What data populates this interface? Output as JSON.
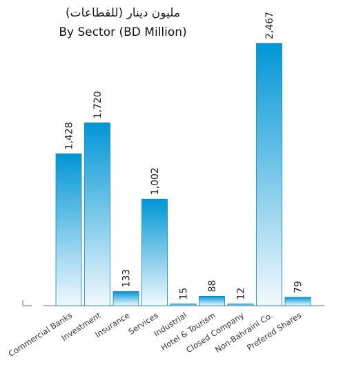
{
  "chart_data": {
    "type": "bar",
    "title_ar": "مليون دينار (للقطاعات)",
    "title": "By Sector (BD Million)",
    "categories": [
      "Commercial Banks",
      "Investment",
      "Insurance",
      "Services",
      "Industrial",
      "Hotel & Tourism",
      "Closed Company",
      "Non-Bahraini Co.",
      "Prefered Shares"
    ],
    "values": [
      1428,
      1720,
      133,
      1002,
      15,
      88,
      12,
      2467,
      79
    ],
    "value_labels": [
      "1,428",
      "1,720",
      "133",
      "1,002",
      "15",
      "88",
      "12",
      "2,467",
      "79"
    ],
    "ylim": [
      0,
      2467
    ],
    "grid": false,
    "legend": "none",
    "colors": {
      "bar_top": "#0096d6",
      "bar_bottom": "#f2f9fd",
      "baseline": "#6a6a6a"
    }
  }
}
